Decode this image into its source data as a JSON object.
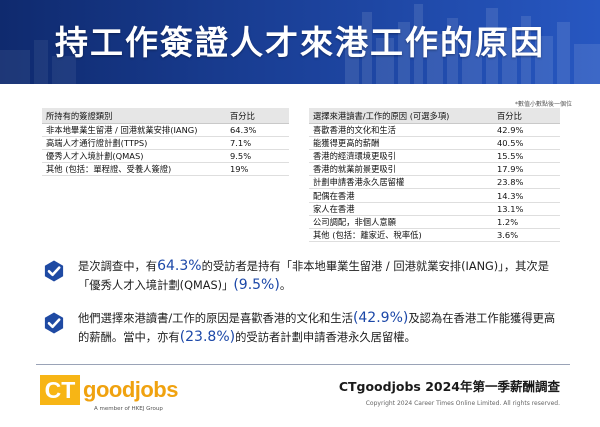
{
  "header": {
    "title": "持工作簽證人才來港工作的原因"
  },
  "note": "*數值小數點後一個位",
  "left_table": {
    "headers": [
      "所持有的簽證類別",
      "百分比"
    ],
    "rows": [
      [
        "非本地畢業生留港 / 回港就業安排(IANG)",
        "64.3%"
      ],
      [
        "高端人才通行證計劃(TTPS)",
        "7.1%"
      ],
      [
        "優秀人才入境計劃(QMAS)",
        "9.5%"
      ],
      [
        "其他 (包括：單程證、受養人簽證)",
        "19%"
      ]
    ]
  },
  "right_table": {
    "headers": [
      "選擇來港讀書/工作的原因 (可選多項)",
      "百分比"
    ],
    "rows": [
      [
        "喜歡香港的文化和生活",
        "42.9%"
      ],
      [
        "能獲得更高的薪酬",
        "40.5%"
      ],
      [
        "香港的經濟環境更吸引",
        "15.5%"
      ],
      [
        "香港的就業前景更吸引",
        "17.9%"
      ],
      [
        "計劃申請香港永久居留權",
        "23.8%"
      ],
      [
        "配偶在香港",
        "14.3%"
      ],
      [
        "家人在香港",
        "13.1%"
      ],
      [
        "公司調配，非個人意願",
        "1.2%"
      ],
      [
        "其他 (包括：離家近、稅率低)",
        "3.6%"
      ]
    ]
  },
  "findings": [
    {
      "p1": "是次調查中，有",
      "h1": "64.3%",
      "p2": "的受訪者是持有「非本地畢業生留港 / 回港就業安排(IANG)」，其次是「優秀人才入境計劃(QMAS)」",
      "h2": "(9.5%)",
      "p3": "。"
    },
    {
      "p1": "他們選擇來港讀書/工作的原因是喜歡香港的文化和生活",
      "h1": "(42.9%)",
      "p2": "及認為在香港工作能獲得更高的薪酬。當中，亦有",
      "h2": "(23.8%)",
      "p3": "的受訪者計劃申請香港永久居留權。"
    }
  ],
  "footer": {
    "logo_ct": "CT",
    "logo_goodjobs": "goodjobs",
    "logo_member": "A member of HKEJ Group",
    "survey_title": "CTgoodjobs 2024年第一季薪酬調查",
    "copyright": "Copyright 2024 Career Times Online Limited. All rights reserved."
  },
  "colors": {
    "header": "#1a3f96",
    "highlight": "#1c48a8",
    "check": "#1f4aa3",
    "logo_yellow": "#f7b515"
  },
  "icons": {
    "check": "check-badge-icon"
  }
}
